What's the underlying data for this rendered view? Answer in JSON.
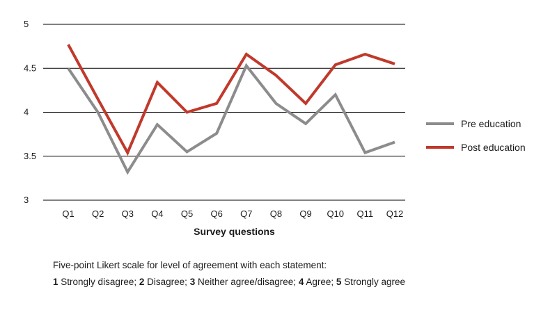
{
  "chart_data": {
    "type": "line",
    "categories": [
      "Q1",
      "Q2",
      "Q3",
      "Q4",
      "Q5",
      "Q6",
      "Q7",
      "Q8",
      "Q9",
      "Q10",
      "Q11",
      "Q12"
    ],
    "series": [
      {
        "name": "Pre education",
        "color": "#8c8c8c",
        "values": [
          4.5,
          4.0,
          3.32,
          3.86,
          3.55,
          3.76,
          4.53,
          4.1,
          3.87,
          4.2,
          3.54,
          3.66
        ]
      },
      {
        "name": "Post education",
        "color": "#c0392b",
        "values": [
          4.77,
          4.15,
          3.54,
          4.34,
          4.0,
          4.1,
          4.66,
          4.42,
          4.1,
          4.54,
          4.66,
          4.55
        ]
      }
    ],
    "yticks": [
      "5",
      "4.5",
      "4",
      "3.5",
      "3"
    ],
    "ylim": [
      3,
      5
    ],
    "xlabel": "Survey questions",
    "ylabel": "",
    "grid": true,
    "legend_position": "right"
  },
  "footnote": {
    "line1": "Five-point Likert scale for level of agreement with each statement:",
    "scale": [
      {
        "num": "1",
        "label": "Strongly disagree;"
      },
      {
        "num": "2",
        "label": "Disagree;"
      },
      {
        "num": "3",
        "label": "Neither agree/disagree;"
      },
      {
        "num": "4",
        "label": "Agree;"
      },
      {
        "num": "5",
        "label": "Strongly agree"
      }
    ]
  }
}
